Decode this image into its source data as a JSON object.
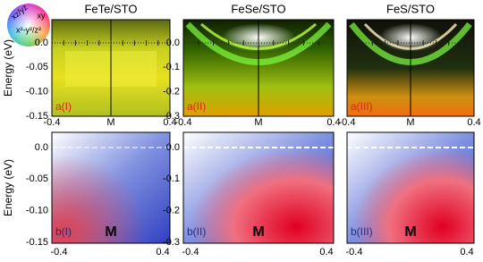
{
  "colorwheel": {
    "labels": [
      "xz/yz",
      "xy",
      "x²-y²/z²"
    ]
  },
  "y_axis_label": "Energy (eV)",
  "top_panels": [
    {
      "title": "FeTe/STO",
      "label": "a(I)",
      "yticks": [
        "0.0",
        "-0.05",
        "-0.10",
        "-0.15"
      ],
      "xticks": [
        "-0.4",
        "M",
        "0.4"
      ]
    },
    {
      "title": "FeSe/STO",
      "label": "a(II)",
      "yticks": [
        "0.0",
        "-0.1",
        "-0.2",
        "-0.3"
      ],
      "xticks": [
        "-0.4",
        "M",
        "0.4"
      ]
    },
    {
      "title": "FeS/STO",
      "label": "a(III)",
      "yticks": [],
      "xticks": [
        "-0.4",
        "M",
        "0.4"
      ]
    }
  ],
  "bottom_panels": [
    {
      "label": "b(I)",
      "center": "M",
      "yticks": [
        "0.0",
        "-0.05",
        "-0.10",
        "-0.15"
      ],
      "xticks": [
        "-0.4",
        "0.4"
      ]
    },
    {
      "label": "b(II)",
      "center": "M",
      "yticks": [
        "0.0",
        "-0.1",
        "-0.2",
        "-0.3"
      ],
      "xticks": [
        "-0.4",
        "0.4"
      ]
    },
    {
      "label": "b(III)",
      "center": "M",
      "yticks": [],
      "xticks": [
        "-0.4",
        "0.4"
      ]
    }
  ]
}
